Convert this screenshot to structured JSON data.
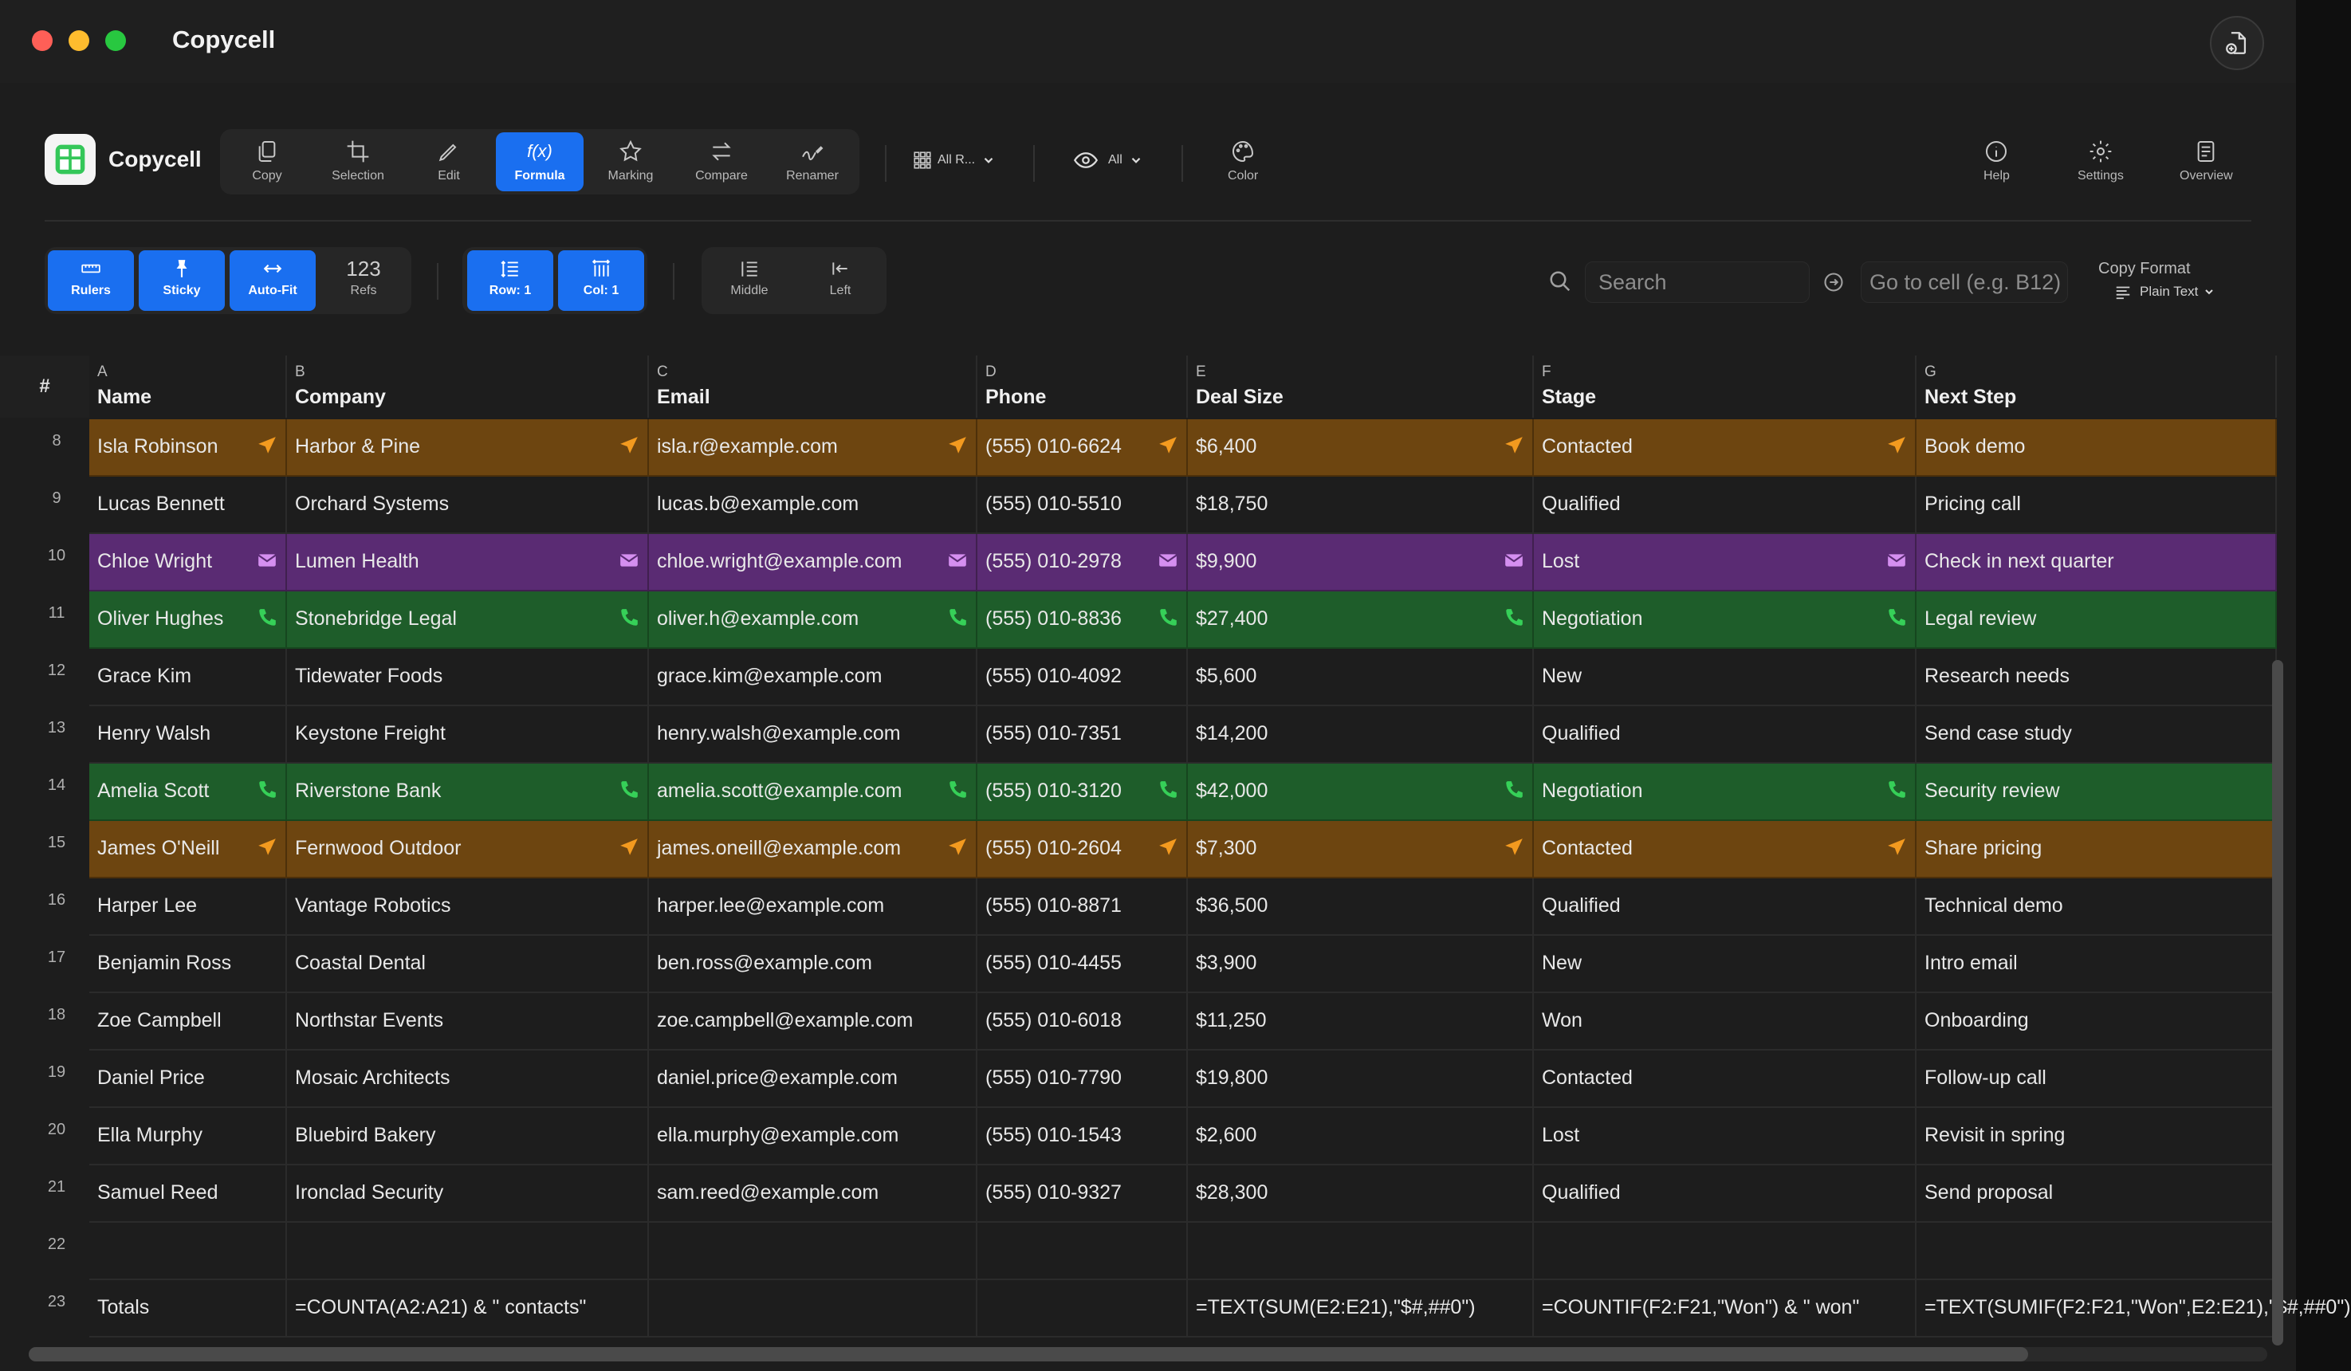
{
  "window": {
    "title": "Copycell"
  },
  "app": {
    "name": "Copycell"
  },
  "toolbar": {
    "tools": [
      {
        "label": "Copy",
        "icon": "copy-icon",
        "active": false
      },
      {
        "label": "Selection",
        "icon": "crop-icon",
        "active": false
      },
      {
        "label": "Edit",
        "icon": "pencil-icon",
        "active": false
      },
      {
        "label": "Formula",
        "icon": "fx-icon",
        "active": true
      },
      {
        "label": "Marking",
        "icon": "star-icon",
        "active": false
      },
      {
        "label": "Compare",
        "icon": "compare-arrows-icon",
        "active": false
      },
      {
        "label": "Renamer",
        "icon": "renamer-icon",
        "active": false
      }
    ],
    "rows_dropdown": "All R...",
    "view_dropdown": "All",
    "color_label": "Color",
    "help_label": "Help",
    "settings_label": "Settings",
    "overview_label": "Overview",
    "fx_glyph": "f(x)"
  },
  "subtoolbar": {
    "rulers": "Rulers",
    "sticky": "Sticky",
    "autofit": "Auto-Fit",
    "refs_count": "123",
    "refs": "Refs",
    "row": "Row: 1",
    "col": "Col: 1",
    "middle": "Middle",
    "left": "Left",
    "search_placeholder": "Search",
    "goto_placeholder": "Go to cell (e.g. B12)",
    "copy_format_title": "Copy Format",
    "copy_format_value": "Plain Text"
  },
  "grid": {
    "rownum_header": "#",
    "columns": [
      {
        "letter": "A",
        "name": "Name"
      },
      {
        "letter": "B",
        "name": "Company"
      },
      {
        "letter": "C",
        "name": "Email"
      },
      {
        "letter": "D",
        "name": "Phone"
      },
      {
        "letter": "E",
        "name": "Deal Size"
      },
      {
        "letter": "F",
        "name": "Stage"
      },
      {
        "letter": "G",
        "name": "Next Step"
      }
    ],
    "rows": [
      {
        "num": "8",
        "highlight": "orange",
        "badge": "send-icon",
        "cells": [
          "Isla Robinson",
          "Harbor & Pine",
          "isla.r@example.com",
          "(555) 010-6624",
          "$6,400",
          "Contacted",
          "Book demo"
        ]
      },
      {
        "num": "9",
        "highlight": "",
        "badge": "",
        "cells": [
          "Lucas Bennett",
          "Orchard Systems",
          "lucas.b@example.com",
          "(555) 010-5510",
          "$18,750",
          "Qualified",
          "Pricing call"
        ]
      },
      {
        "num": "10",
        "highlight": "purple",
        "badge": "mail-icon",
        "cells": [
          "Chloe Wright",
          "Lumen Health",
          "chloe.wright@example.com",
          "(555) 010-2978",
          "$9,900",
          "Lost",
          "Check in next quarter"
        ]
      },
      {
        "num": "11",
        "highlight": "green",
        "badge": "phone-icon",
        "cells": [
          "Oliver Hughes",
          "Stonebridge Legal",
          "oliver.h@example.com",
          "(555) 010-8836",
          "$27,400",
          "Negotiation",
          "Legal review"
        ]
      },
      {
        "num": "12",
        "highlight": "",
        "badge": "",
        "cells": [
          "Grace Kim",
          "Tidewater Foods",
          "grace.kim@example.com",
          "(555) 010-4092",
          "$5,600",
          "New",
          "Research needs"
        ]
      },
      {
        "num": "13",
        "highlight": "",
        "badge": "",
        "cells": [
          "Henry Walsh",
          "Keystone Freight",
          "henry.walsh@example.com",
          "(555) 010-7351",
          "$14,200",
          "Qualified",
          "Send case study"
        ]
      },
      {
        "num": "14",
        "highlight": "green",
        "badge": "phone-icon",
        "cells": [
          "Amelia Scott",
          "Riverstone Bank",
          "amelia.scott@example.com",
          "(555) 010-3120",
          "$42,000",
          "Negotiation",
          "Security review"
        ]
      },
      {
        "num": "15",
        "highlight": "orange",
        "badge": "send-icon",
        "cells": [
          "James O'Neill",
          "Fernwood Outdoor",
          "james.oneill@example.com",
          "(555) 010-2604",
          "$7,300",
          "Contacted",
          "Share pricing"
        ]
      },
      {
        "num": "16",
        "highlight": "",
        "badge": "",
        "cells": [
          "Harper Lee",
          "Vantage Robotics",
          "harper.lee@example.com",
          "(555) 010-8871",
          "$36,500",
          "Qualified",
          "Technical demo"
        ]
      },
      {
        "num": "17",
        "highlight": "",
        "badge": "",
        "cells": [
          "Benjamin Ross",
          "Coastal Dental",
          "ben.ross@example.com",
          "(555) 010-4455",
          "$3,900",
          "New",
          "Intro email"
        ]
      },
      {
        "num": "18",
        "highlight": "",
        "badge": "",
        "cells": [
          "Zoe Campbell",
          "Northstar Events",
          "zoe.campbell@example.com",
          "(555) 010-6018",
          "$11,250",
          "Won",
          "Onboarding"
        ]
      },
      {
        "num": "19",
        "highlight": "",
        "badge": "",
        "cells": [
          "Daniel Price",
          "Mosaic Architects",
          "daniel.price@example.com",
          "(555) 010-7790",
          "$19,800",
          "Contacted",
          "Follow-up call"
        ]
      },
      {
        "num": "20",
        "highlight": "",
        "badge": "",
        "cells": [
          "Ella Murphy",
          "Bluebird Bakery",
          "ella.murphy@example.com",
          "(555) 010-1543",
          "$2,600",
          "Lost",
          "Revisit in spring"
        ]
      },
      {
        "num": "21",
        "highlight": "",
        "badge": "",
        "cells": [
          "Samuel Reed",
          "Ironclad Security",
          "sam.reed@example.com",
          "(555) 010-9327",
          "$28,300",
          "Qualified",
          "Send proposal"
        ]
      },
      {
        "num": "22",
        "highlight": "",
        "badge": "",
        "cells": [
          "",
          "",
          "",
          "",
          "",
          "",
          ""
        ]
      },
      {
        "num": "23",
        "highlight": "",
        "badge": "",
        "cells": [
          "Totals",
          "=COUNTA(A2:A21) & \" contacts\"",
          "",
          "",
          "=TEXT(SUM(E2:E21),\"$#,##0\")",
          "=COUNTIF(F2:F21,\"Won\") & \" won\"",
          "=TEXT(SUMIF(F2:F21,\"Won\",E2:E21),\"$#,##0\")"
        ]
      }
    ]
  },
  "colors": {
    "accent": "#1a6ff0",
    "orange_row": "#6d4510",
    "purple_row": "#5a2b73",
    "green_row": "#1e5d2a",
    "send_badge": "#f39a1f",
    "mail_badge": "#d58ff0",
    "phone_badge": "#36d058"
  }
}
